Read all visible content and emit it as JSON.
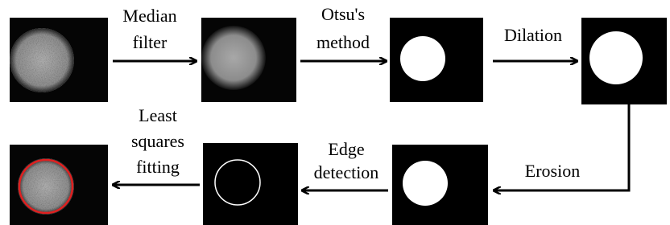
{
  "steps": [
    {
      "lines": [
        "Median",
        "filter"
      ]
    },
    {
      "lines": [
        "Otsu's",
        "method"
      ]
    },
    {
      "lines": [
        "Dilation"
      ]
    },
    {
      "lines": [
        "Erosion"
      ]
    },
    {
      "lines": [
        "Edge",
        "detection"
      ]
    },
    {
      "lines": [
        "Least",
        "squares",
        "fitting"
      ]
    }
  ]
}
